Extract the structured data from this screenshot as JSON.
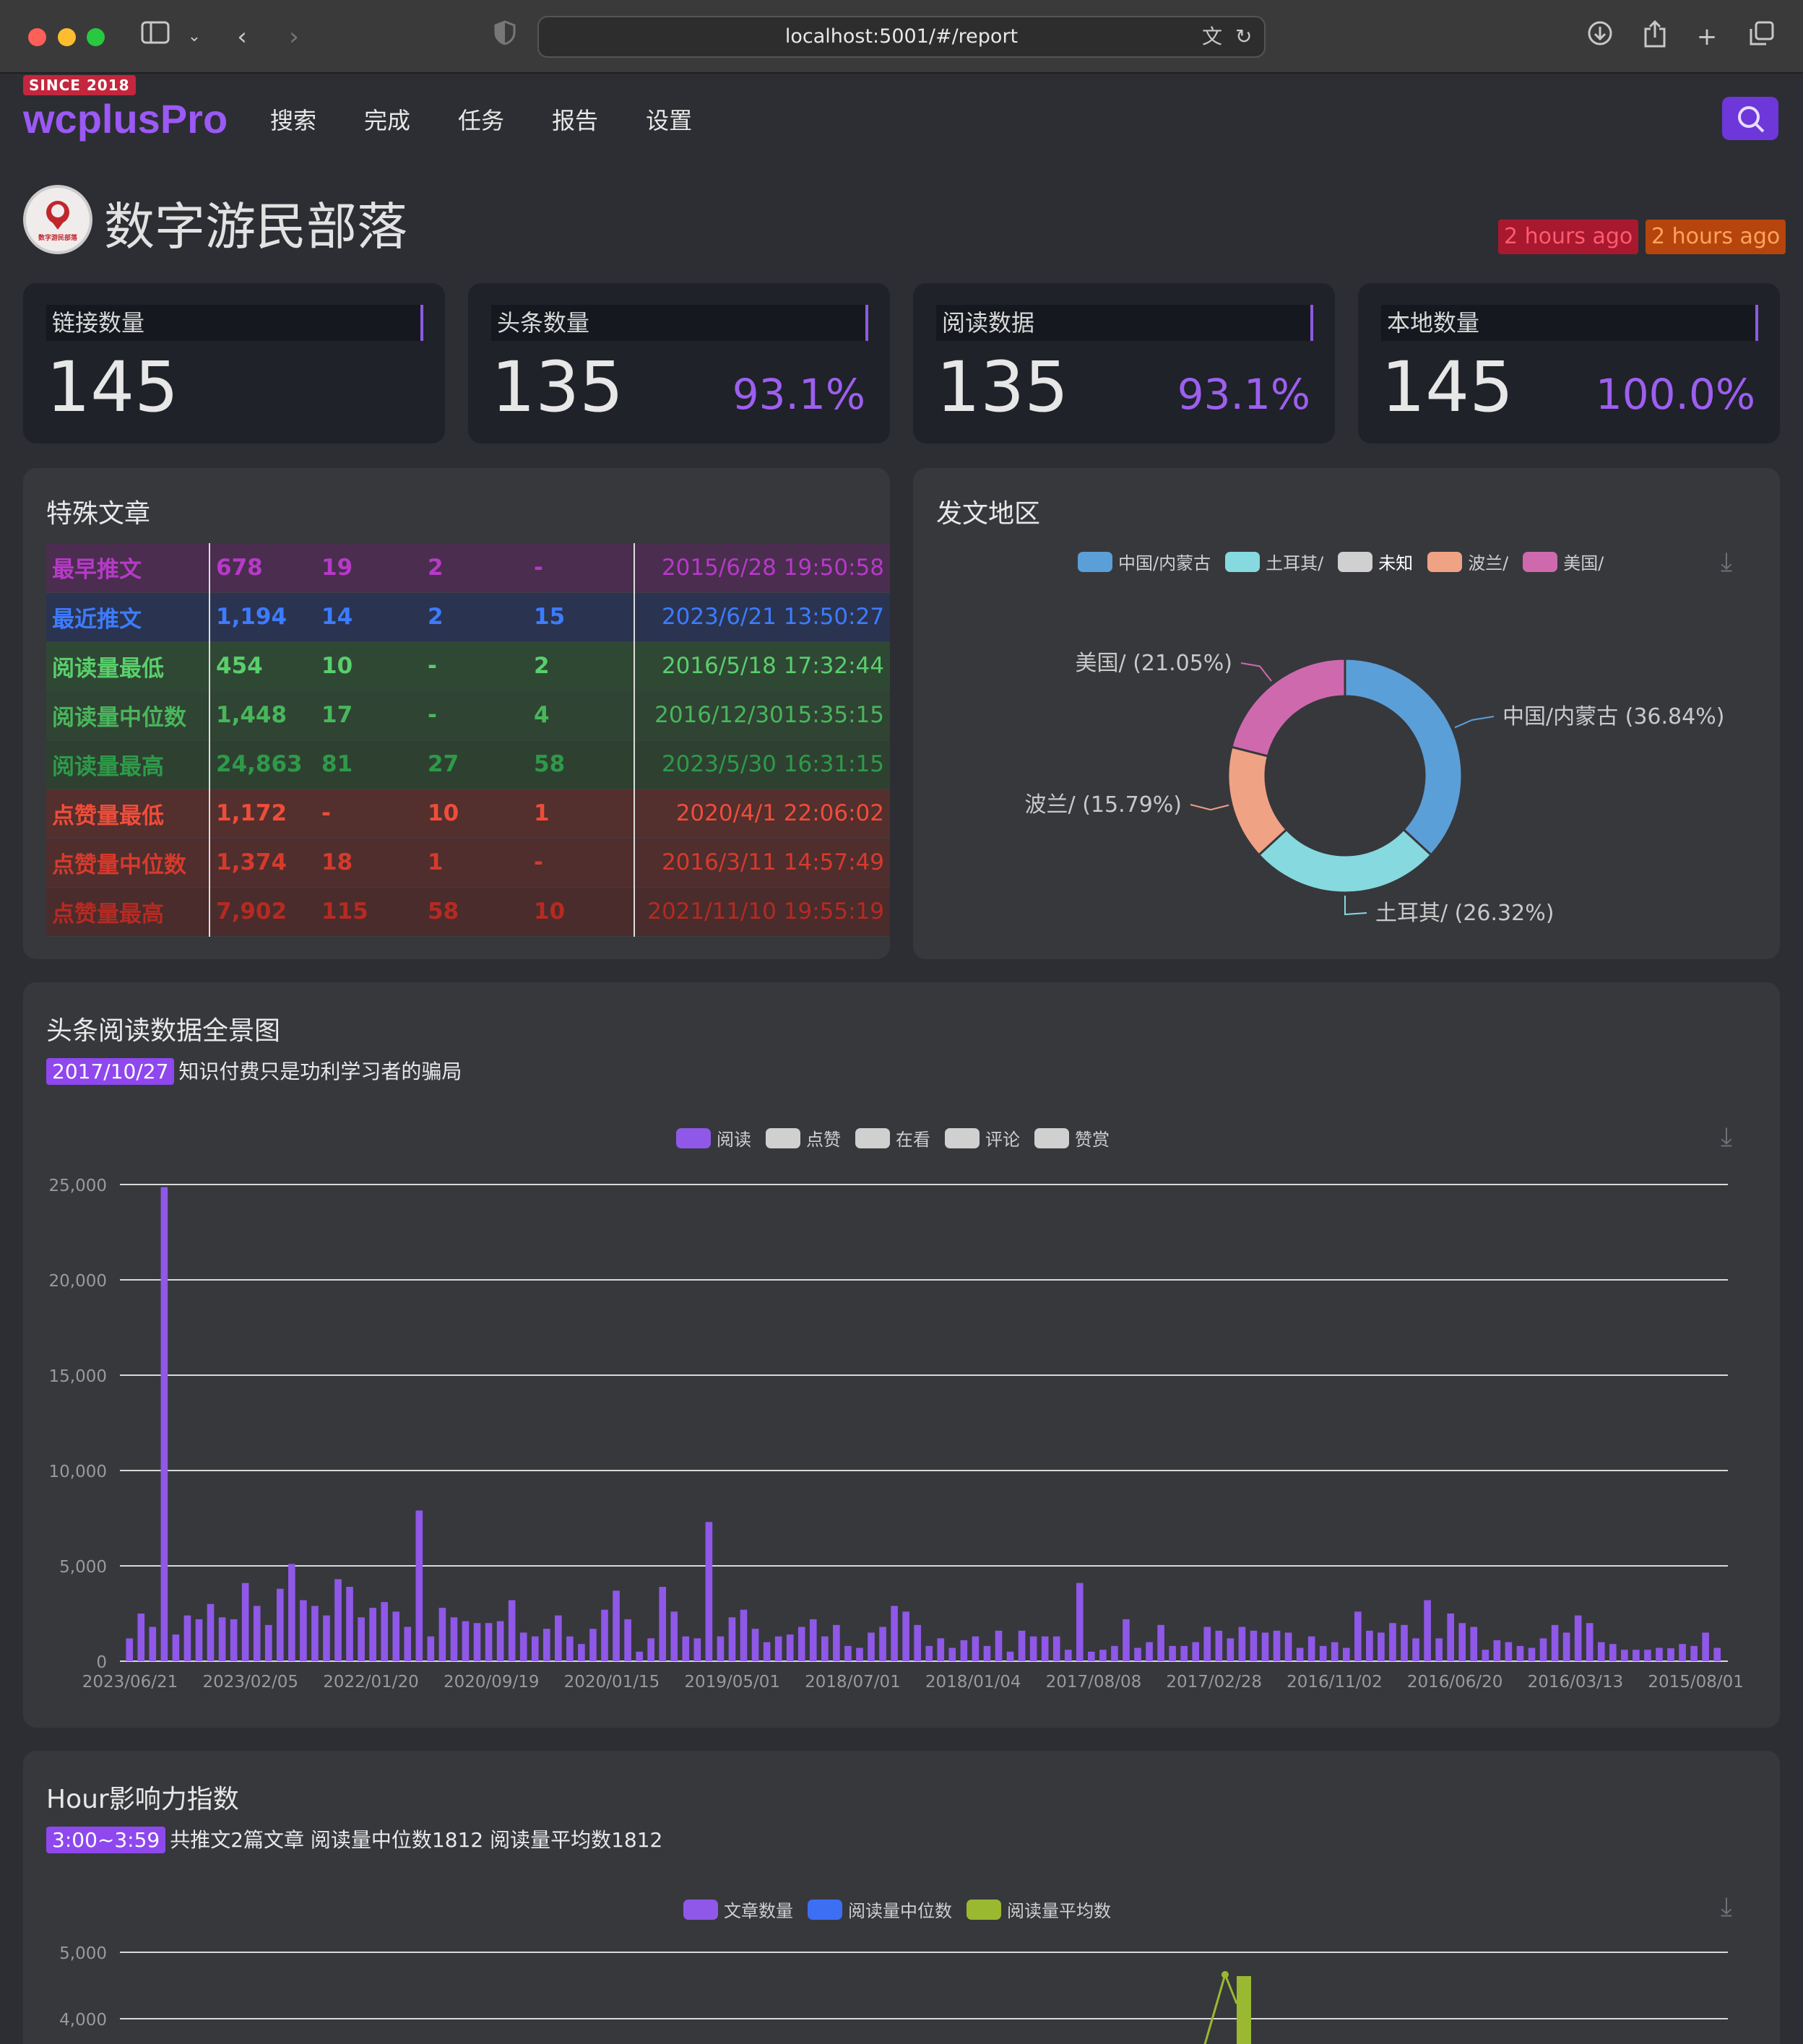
{
  "browser": {
    "url": "localhost:5001/#/report"
  },
  "app": {
    "since": "SINCE 2018",
    "brand": "wcplusPro",
    "nav": [
      "搜索",
      "完成",
      "任务",
      "报告",
      "设置"
    ]
  },
  "account": {
    "name": "数字游民部落",
    "avatar_text": "数字游民部落",
    "updated_1": "2 hours ago",
    "updated_2": "2 hours ago"
  },
  "stats": [
    {
      "label": "链接数量",
      "value": "145",
      "pct": ""
    },
    {
      "label": "头条数量",
      "value": "135",
      "pct": "93.1%"
    },
    {
      "label": "阅读数据",
      "value": "135",
      "pct": "93.1%"
    },
    {
      "label": "本地数量",
      "value": "145",
      "pct": "100.0%"
    }
  ],
  "special": {
    "title": "特殊文章",
    "rows": [
      {
        "name": "最早推文",
        "v1": "678",
        "v2": "19",
        "v3": "2",
        "v4": "-",
        "date": "2015/6/28 19:50:58",
        "color": "#b63ac7",
        "bg": "#4a2d4f"
      },
      {
        "name": "最近推文",
        "v1": "1,194",
        "v2": "14",
        "v3": "2",
        "v4": "15",
        "date": "2023/6/21 13:50:27",
        "color": "#3d7bff",
        "bg": "#2a3450"
      },
      {
        "name": "阅读量最低",
        "v1": "454",
        "v2": "10",
        "v3": "-",
        "v4": "2",
        "date": "2016/5/18  17:32:44",
        "color": "#59cf6b",
        "bg": "#2f4834"
      },
      {
        "name": "阅读量中位数",
        "v1": "1,448",
        "v2": "17",
        "v3": "-",
        "v4": "4",
        "date": "2016/12/3015:35:15",
        "color": "#49b65c",
        "bg": "#2f4432"
      },
      {
        "name": "阅读量最高",
        "v1": "24,863",
        "v2": "81",
        "v3": "27",
        "v4": "58",
        "date": "2023/5/30  16:31:15",
        "color": "#2e9a49",
        "bg": "#2e4131"
      },
      {
        "name": "点赞量最低",
        "v1": "1,172",
        "v2": "-",
        "v3": "10",
        "v4": "1",
        "date": "2020/4/1   22:06:02",
        "color": "#ef4d3a",
        "bg": "#532f2d"
      },
      {
        "name": "点赞量中位数",
        "v1": "1,374",
        "v2": "18",
        "v3": "1",
        "v4": "-",
        "date": "2016/3/11  14:57:49",
        "color": "#d63a2c",
        "bg": "#4f2e2d"
      },
      {
        "name": "点赞量最高",
        "v1": "7,902",
        "v2": "115",
        "v3": "58",
        "v4": "10",
        "date": "2021/11/10 19:55:19",
        "color": "#b52a22",
        "bg": "#4a2c2c"
      }
    ]
  },
  "region": {
    "title": "发文地区",
    "legend": [
      {
        "name": "中国/内蒙古",
        "color": "#5b9fd9"
      },
      {
        "name": "土耳其/",
        "color": "#86d9de"
      },
      {
        "name": "未知",
        "color": "#d0d0d0"
      },
      {
        "name": "波兰/",
        "color": "#f0a284"
      },
      {
        "name": "美国/",
        "color": "#cf69ae"
      }
    ],
    "slice_labels": [
      "中国/内蒙古 (36.84%)",
      "土耳其/ (26.32%)",
      "波兰/ (15.79%)",
      "美国/ (21.05%)"
    ]
  },
  "reads": {
    "title": "头条阅读数据全景图",
    "tag": "2017/10/27",
    "subtitle": "知识付费只是功利学习者的骗局",
    "legend": [
      {
        "name": "阅读",
        "color": "#8f58e8"
      },
      {
        "name": "点赞",
        "color": "#d0d0d0"
      },
      {
        "name": "在看",
        "color": "#d0d0d0"
      },
      {
        "name": "评论",
        "color": "#d0d0d0"
      },
      {
        "name": "赞赏",
        "color": "#d0d0d0"
      }
    ]
  },
  "hour": {
    "title": "Hour影响力指数",
    "tag": "3:00~3:59",
    "subtitle": "共推文2篇文章 阅读量中位数1812 阅读量平均数1812",
    "legend": [
      {
        "name": "文章数量",
        "color": "#8f58e8"
      },
      {
        "name": "阅读量中位数",
        "color": "#3d6ff5"
      },
      {
        "name": "阅读量平均数",
        "color": "#9ab930"
      }
    ]
  },
  "chart_data": [
    {
      "type": "pie",
      "title": "发文地区",
      "categories": [
        "中国/内蒙古",
        "土耳其/",
        "未知",
        "波兰/",
        "美国/"
      ],
      "values": [
        36.84,
        26.32,
        0,
        15.79,
        21.05
      ],
      "colors": [
        "#5b9fd9",
        "#86d9de",
        "#d0d0d0",
        "#f0a284",
        "#cf69ae"
      ],
      "legend": "top"
    },
    {
      "type": "bar",
      "title": "头条阅读数据全景图",
      "series": [
        {
          "name": "阅读",
          "color": "#8f58e8",
          "values": [
            1194,
            2500,
            1800,
            24863,
            1400,
            2400,
            2200,
            3000,
            2300,
            2200,
            4100,
            2900,
            1900,
            3800,
            5100,
            3200,
            2900,
            2400,
            4300,
            3900,
            2300,
            2800,
            3100,
            2600,
            1800,
            7902,
            1300,
            2800,
            2300,
            2100,
            2000,
            2000,
            2100,
            3200,
            1500,
            1300,
            1700,
            2400,
            1300,
            900,
            1700,
            2700,
            3700,
            2200,
            500,
            1200,
            3900,
            2600,
            1300,
            1200,
            7300,
            1300,
            2300,
            2700,
            1700,
            1000,
            1300,
            1400,
            1800,
            2200,
            1300,
            1900,
            800,
            700,
            1500,
            1800,
            2900,
            2600,
            1900,
            800,
            1200,
            700,
            1100,
            1300,
            800,
            1600,
            500,
            1600,
            1300,
            1300,
            1300,
            600,
            4100,
            500,
            600,
            800,
            2200,
            700,
            1000,
            1900,
            800,
            800,
            1000,
            1800,
            1600,
            1200,
            1800,
            1600,
            1500,
            1600,
            1500,
            700,
            1300,
            800,
            1000,
            700,
            2600,
            1600,
            1500,
            2000,
            1900,
            1200,
            3200,
            1200,
            2500,
            2000,
            1800,
            600,
            1100,
            1000,
            800,
            700,
            1200,
            1900,
            1500,
            2400,
            2000,
            1000,
            900,
            600,
            600,
            600,
            700,
            678,
            900,
            800,
            1500,
            700
          ]
        }
      ],
      "x_ticks": [
        "2023/06/21",
        "2023/02/05",
        "2022/01/20",
        "2020/09/19",
        "2020/01/15",
        "2019/05/01",
        "2018/07/01",
        "2018/01/04",
        "2017/08/08",
        "2017/02/28",
        "2016/11/02",
        "2016/06/20",
        "2016/03/13",
        "2015/08/01"
      ],
      "y_ticks": [
        "0",
        "5,000",
        "10,000",
        "15,000",
        "20,000",
        "25,000"
      ],
      "ylim": [
        0,
        25000
      ],
      "grid": true,
      "legend": "top"
    },
    {
      "type": "bar",
      "title": "Hour影响力指数",
      "series": [
        {
          "name": "文章数量",
          "color": "#8f58e8",
          "values": []
        },
        {
          "name": "阅读量中位数",
          "color": "#3d6ff5",
          "values": []
        },
        {
          "name": "阅读量平均数",
          "color": "#9ab930",
          "values": []
        }
      ],
      "y_ticks": [
        "4,000",
        "5,000"
      ],
      "grid": true,
      "legend": "top"
    }
  ]
}
